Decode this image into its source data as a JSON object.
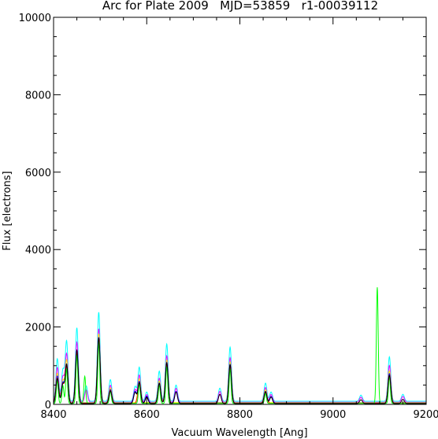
{
  "chart_data": {
    "type": "line",
    "title": "Arc for Plate 2009   MJD=53859   r1-00039112",
    "xlabel": "Vacuum Wavelength [Ang]",
    "ylabel": "Flux [electrons]",
    "xlim": [
      8400,
      9200
    ],
    "ylim": [
      0,
      10000
    ],
    "x_ticks": [
      8400,
      8600,
      8800,
      9000,
      9200
    ],
    "y_ticks": [
      0,
      2000,
      4000,
      6000,
      8000,
      10000
    ],
    "x_tick_labels": [
      "8400",
      "8600",
      "8800",
      "9000",
      "9200"
    ],
    "y_tick_labels": [
      "0",
      "2000",
      "4000",
      "6000",
      "8000",
      "10000"
    ],
    "grid": false,
    "legend": "none",
    "series": [
      {
        "color": "#00ffff",
        "baseline": 80,
        "width": 3,
        "peaks": [
          [
            8408,
            1100
          ],
          [
            8420,
            800
          ],
          [
            8428,
            1550
          ],
          [
            8450,
            1900
          ],
          [
            8470,
            400
          ],
          [
            8497,
            2300
          ],
          [
            8522,
            560
          ],
          [
            8575,
            380
          ],
          [
            8584,
            880
          ],
          [
            8600,
            240
          ],
          [
            8627,
            780
          ],
          [
            8643,
            1480
          ],
          [
            8663,
            420
          ],
          [
            8757,
            340
          ],
          [
            8779,
            1400
          ],
          [
            8855,
            470
          ],
          [
            8867,
            240
          ],
          [
            9060,
            160
          ],
          [
            9121,
            1150
          ],
          [
            9150,
            180
          ]
        ]
      },
      {
        "color": "#ff00ff",
        "baseline": 55,
        "width": 3,
        "peaks": [
          [
            8408,
            900
          ],
          [
            8420,
            650
          ],
          [
            8428,
            1250
          ],
          [
            8450,
            1550
          ],
          [
            8470,
            320
          ],
          [
            8497,
            1900
          ],
          [
            8522,
            440
          ],
          [
            8575,
            330
          ],
          [
            8584,
            700
          ],
          [
            8600,
            200
          ],
          [
            8627,
            620
          ],
          [
            8643,
            1200
          ],
          [
            8663,
            360
          ],
          [
            8757,
            280
          ],
          [
            8779,
            1150
          ],
          [
            8855,
            380
          ],
          [
            8867,
            200
          ],
          [
            9060,
            130
          ],
          [
            9121,
            950
          ],
          [
            9150,
            150
          ]
        ]
      },
      {
        "color": "#ffff00",
        "baseline": 45,
        "width": 3,
        "peaks": [
          [
            8408,
            760
          ],
          [
            8420,
            560
          ],
          [
            8428,
            1100
          ],
          [
            8450,
            1350
          ],
          [
            8497,
            1780
          ],
          [
            8522,
            380
          ],
          [
            8584,
            620
          ],
          [
            8627,
            560
          ],
          [
            8643,
            1100
          ],
          [
            8779,
            1050
          ],
          [
            8855,
            330
          ],
          [
            9121,
            820
          ]
        ]
      },
      {
        "color": "#0000ff",
        "baseline": 35,
        "width": 3,
        "peaks": [
          [
            8408,
            700
          ],
          [
            8420,
            520
          ],
          [
            8428,
            1000
          ],
          [
            8450,
            1350
          ],
          [
            8497,
            1700
          ],
          [
            8522,
            350
          ],
          [
            8575,
            300
          ],
          [
            8584,
            560
          ],
          [
            8600,
            180
          ],
          [
            8627,
            520
          ],
          [
            8643,
            1050
          ],
          [
            8663,
            300
          ],
          [
            8779,
            1000
          ],
          [
            8855,
            300
          ],
          [
            8867,
            170
          ],
          [
            9121,
            760
          ]
        ]
      },
      {
        "color": "#ff0000",
        "baseline": 30,
        "width": 3,
        "peaks": [
          [
            8408,
            650
          ],
          [
            8420,
            480
          ],
          [
            8428,
            950
          ],
          [
            8450,
            1300
          ],
          [
            8497,
            1650
          ],
          [
            8522,
            330
          ],
          [
            8584,
            520
          ],
          [
            8627,
            500
          ],
          [
            8643,
            1000
          ],
          [
            8779,
            950
          ],
          [
            8855,
            280
          ],
          [
            9121,
            720
          ]
        ]
      },
      {
        "color": "#00ff00",
        "baseline": 25,
        "width": 2,
        "peaks": [
          [
            8408,
            600
          ],
          [
            8420,
            460
          ],
          [
            8428,
            900
          ],
          [
            8450,
            1250
          ],
          [
            8467,
            700
          ],
          [
            8497,
            1600
          ],
          [
            8522,
            320
          ],
          [
            8584,
            500
          ],
          [
            8627,
            480
          ],
          [
            8643,
            950
          ],
          [
            8779,
            900
          ],
          [
            8855,
            260
          ],
          [
            9095,
            3000
          ],
          [
            9121,
            700
          ]
        ]
      },
      {
        "color": "#000000",
        "baseline": 20,
        "width": 3,
        "peaks": [
          [
            8408,
            650
          ],
          [
            8420,
            500
          ],
          [
            8428,
            1000
          ],
          [
            8450,
            1380
          ],
          [
            8497,
            1700
          ],
          [
            8522,
            330
          ],
          [
            8575,
            290
          ],
          [
            8584,
            540
          ],
          [
            8600,
            170
          ],
          [
            8627,
            520
          ],
          [
            8643,
            1050
          ],
          [
            8663,
            300
          ],
          [
            8757,
            240
          ],
          [
            8779,
            1000
          ],
          [
            8855,
            310
          ],
          [
            8867,
            170
          ],
          [
            9060,
            100
          ],
          [
            9121,
            730
          ],
          [
            9150,
            110
          ]
        ]
      }
    ]
  }
}
